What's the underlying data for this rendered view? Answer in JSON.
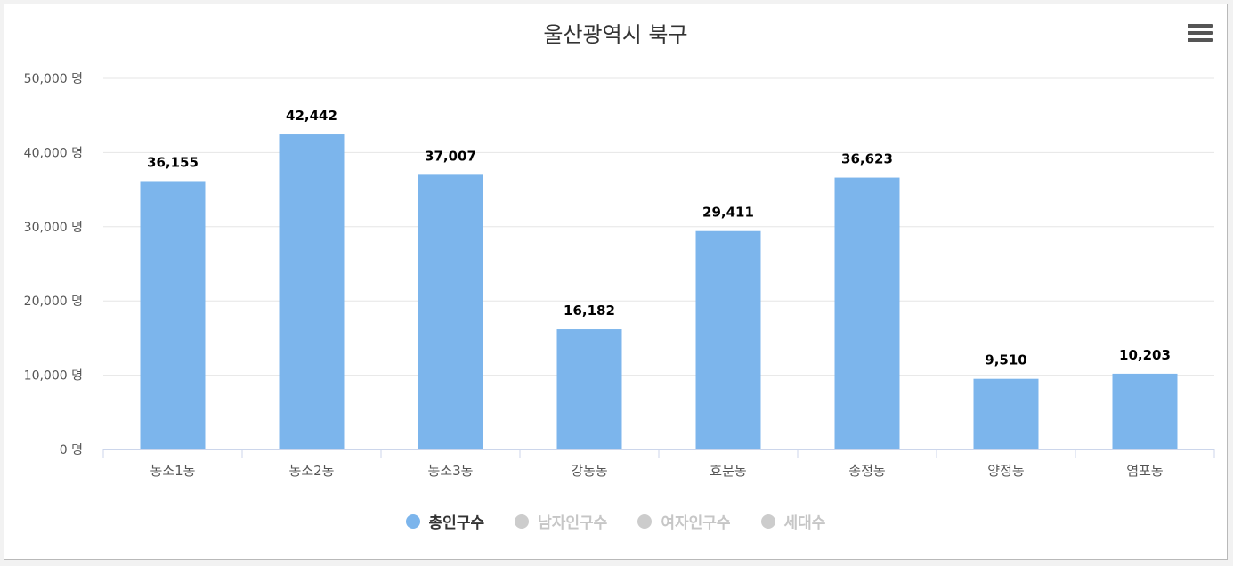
{
  "chart_data": {
    "type": "bar",
    "title": "울산광역시 북구",
    "categories": [
      "농소1동",
      "농소2동",
      "농소3동",
      "강동동",
      "효문동",
      "송정동",
      "양정동",
      "염포동"
    ],
    "series": [
      {
        "name": "총인구수",
        "values": [
          36155,
          42442,
          37007,
          16182,
          29411,
          36623,
          9510,
          10203
        ],
        "color": "#7cb5ec",
        "visible": true
      }
    ],
    "data_labels": [
      "36,155",
      "42,442",
      "37,007",
      "16,182",
      "29,411",
      "36,623",
      "9,510",
      "10,203"
    ],
    "y_ticks": [
      0,
      10000,
      20000,
      30000,
      40000,
      50000
    ],
    "y_tick_labels": [
      "0 명",
      "10,000 명",
      "20,000 명",
      "30,000 명",
      "40,000 명",
      "50,000 명"
    ],
    "ylim": [
      0,
      50000
    ],
    "grid": true,
    "legend_position": "bottom-center"
  },
  "legend": [
    {
      "label": "총인구수",
      "color": "#7cb5ec",
      "active": true
    },
    {
      "label": "남자인구수",
      "color": "#cccccc",
      "active": false
    },
    {
      "label": "여자인구수",
      "color": "#cccccc",
      "active": false
    },
    {
      "label": "세대수",
      "color": "#cccccc",
      "active": false
    }
  ],
  "menu_icon": "hamburger-menu-icon"
}
